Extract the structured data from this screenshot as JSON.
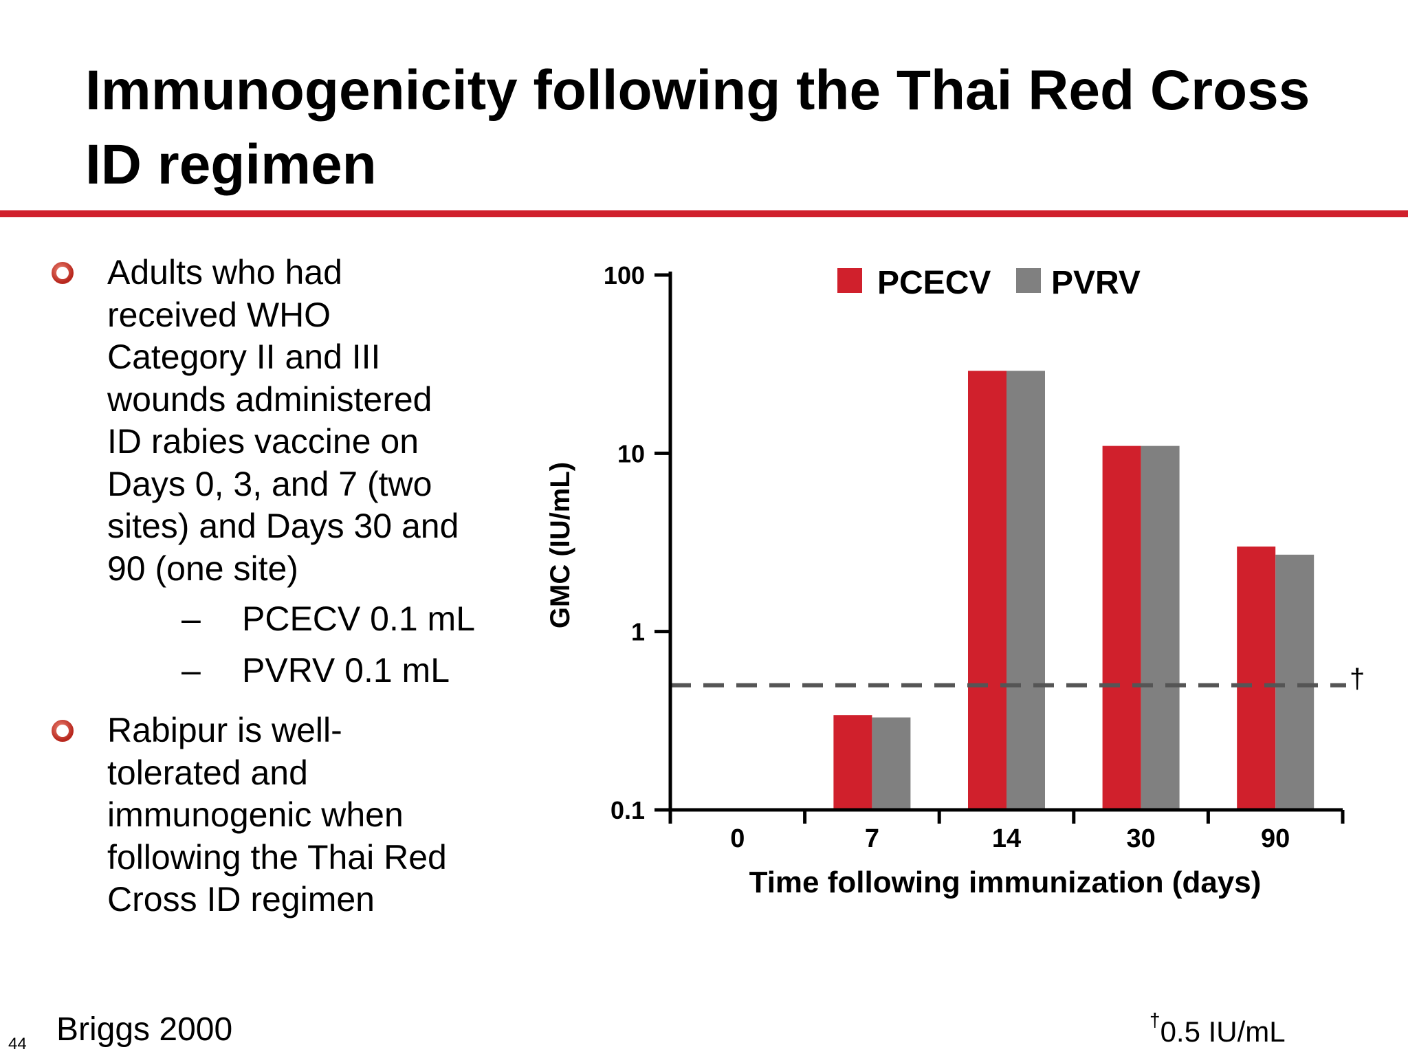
{
  "slide": {
    "title": "Immunogenicity following the Thai Red Cross ID regimen",
    "page_number": "44",
    "reference": "Briggs 2000",
    "footnote_symbol": "†",
    "footnote_text": "0.5 IU/mL"
  },
  "colors": {
    "accent_red": "#d0202c",
    "pcecv": "#d0202c",
    "pvrv": "#808080",
    "threshold_line": "#555555"
  },
  "bullets": [
    {
      "text": "Adults who had\nreceived WHO\nCategory II and III\nwounds administered\nID rabies vaccine on\nDays 0, 3, and 7 (two\nsites) and Days 30 and\n90 (one site)",
      "marker_icon": "hollow-circle-bullet-icon",
      "sub_items": [
        {
          "dash": "–",
          "text": "PCECV 0.1 mL"
        },
        {
          "dash": "–",
          "text": "PVRV 0.1 mL"
        }
      ]
    },
    {
      "text": "Rabipur is well-\ntolerated and\nimmunogenic when\nfollowing the Thai Red\nCross ID regimen",
      "marker_icon": "hollow-circle-bullet-icon"
    }
  ],
  "chart_data": {
    "type": "bar",
    "title": "",
    "xlabel": "Time following immunization (days)",
    "ylabel": "GMC (IU/mL)",
    "y_scale": "log",
    "ylim": [
      0.1,
      100
    ],
    "y_ticks": [
      "100",
      "10",
      "1",
      "0.1"
    ],
    "y_tick_values": [
      100,
      10,
      1,
      0.1
    ],
    "categories": [
      "0",
      "7",
      "14",
      "30",
      "90"
    ],
    "series": [
      {
        "name": "PCECV",
        "color": "#d0202c",
        "values": [
          null,
          0.34,
          29,
          11,
          3.0
        ]
      },
      {
        "name": "PVRV",
        "color": "#808080",
        "values": [
          null,
          0.33,
          29,
          11,
          2.7
        ]
      }
    ],
    "reference_line": {
      "value": 0.5,
      "style": "dashed",
      "label": "†"
    },
    "legend_position": "top",
    "grid": false
  }
}
